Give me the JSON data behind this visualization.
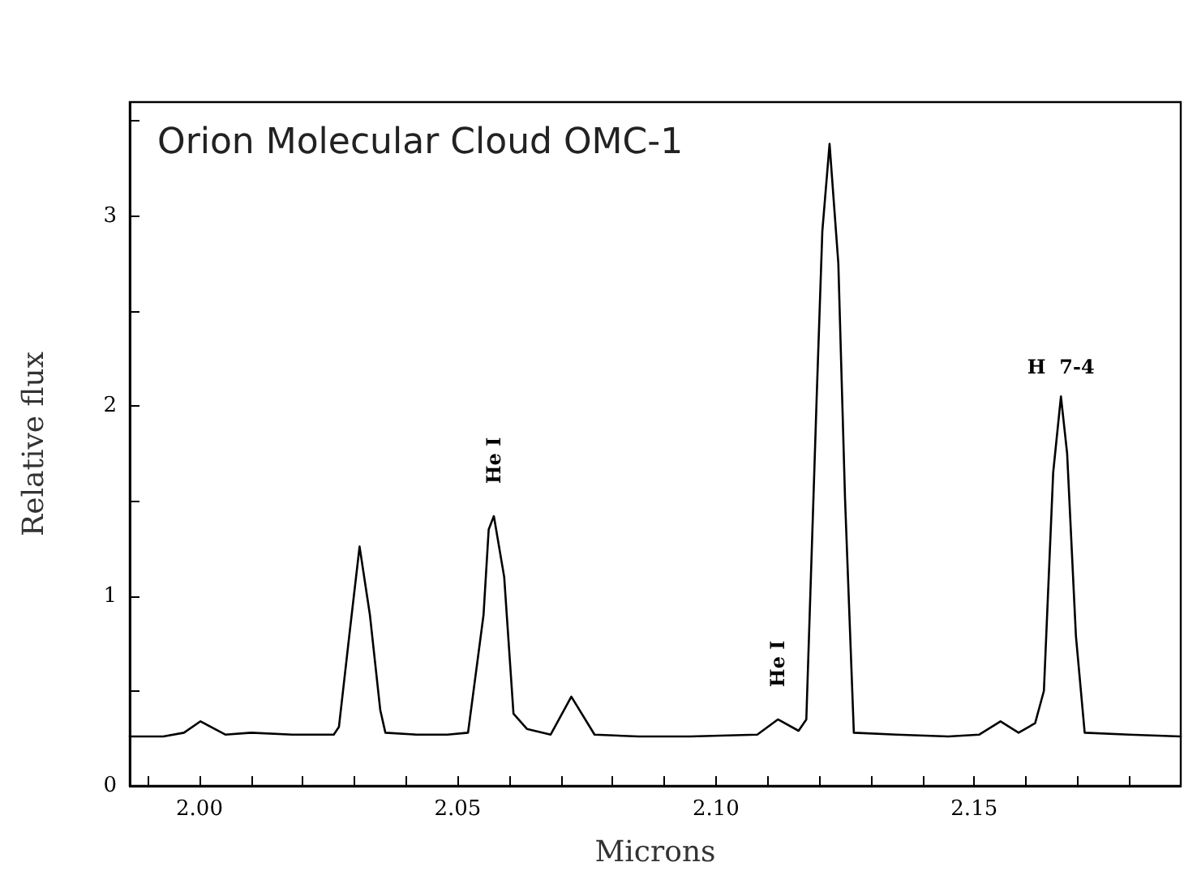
{
  "chart_data": {
    "type": "line",
    "title": "Orion Molecular Cloud OMC-1",
    "xlabel": "Microns",
    "ylabel": "Relative flux",
    "x": [
      1.9865,
      1.993,
      1.997,
      2.0002,
      2.005,
      2.01,
      2.018,
      2.026,
      2.027,
      2.029,
      2.031,
      2.033,
      2.035,
      2.036,
      2.042,
      2.048,
      2.052,
      2.055,
      2.056,
      2.057,
      2.059,
      2.0608,
      2.0634,
      2.068,
      2.072,
      2.0765,
      2.085,
      2.095,
      2.108,
      2.112,
      2.116,
      2.1175,
      2.1195,
      2.1206,
      2.122,
      2.1237,
      2.125,
      2.1267,
      2.135,
      2.145,
      2.151,
      2.1551,
      2.1586,
      2.1618,
      2.1635,
      2.1653,
      2.1668,
      2.168,
      2.1697,
      2.1714,
      2.18,
      2.19
    ],
    "series": [
      {
        "color": "#000000",
        "values": [
          0.26,
          0.26,
          0.28,
          0.34,
          0.27,
          0.28,
          0.27,
          0.27,
          0.31,
          0.79,
          1.26,
          0.9,
          0.4,
          0.28,
          0.27,
          0.27,
          0.28,
          0.9,
          1.35,
          1.42,
          1.1,
          0.38,
          0.3,
          0.27,
          0.47,
          0.27,
          0.26,
          0.26,
          0.27,
          0.35,
          0.29,
          0.35,
          2.04,
          2.92,
          3.38,
          2.75,
          1.51,
          0.28,
          0.27,
          0.26,
          0.27,
          0.34,
          0.28,
          0.33,
          0.5,
          1.65,
          2.05,
          1.75,
          0.79,
          0.28,
          0.27,
          0.26
        ]
      }
    ],
    "annotations": [
      {
        "text": "He I",
        "x": 2.057,
        "y": 1.42
      },
      {
        "text": "He I",
        "x": 2.112,
        "y": 0.35
      },
      {
        "text": "H  7-4",
        "x": 2.1668,
        "y": 2.05
      }
    ],
    "xlim": [
      1.9865,
      2.19
    ],
    "ylim": [
      0,
      3.6
    ],
    "xticks": [
      {
        "value": 1.99,
        "label": null
      },
      {
        "value": 2.0,
        "label": "2.00"
      },
      {
        "value": 2.01,
        "label": null
      },
      {
        "value": 2.02,
        "label": null
      },
      {
        "value": 2.03,
        "label": null
      },
      {
        "value": 2.04,
        "label": null
      },
      {
        "value": 2.05,
        "label": "2.05"
      },
      {
        "value": 2.06,
        "label": null
      },
      {
        "value": 2.07,
        "label": null
      },
      {
        "value": 2.08,
        "label": null
      },
      {
        "value": 2.09,
        "label": null
      },
      {
        "value": 2.1,
        "label": "2.10"
      },
      {
        "value": 2.11,
        "label": null
      },
      {
        "value": 2.12,
        "label": null
      },
      {
        "value": 2.13,
        "label": null
      },
      {
        "value": 2.14,
        "label": null
      },
      {
        "value": 2.15,
        "label": "2.15"
      },
      {
        "value": 2.16,
        "label": null
      },
      {
        "value": 2.17,
        "label": null
      },
      {
        "value": 2.18,
        "label": null
      }
    ],
    "yticks": [
      0,
      {
        "value": 0.5,
        "label": null
      },
      1,
      {
        "value": 1.5,
        "label": null
      },
      2,
      {
        "value": 2.5,
        "label": null
      },
      3,
      {
        "value": 3.5,
        "label": null
      }
    ],
    "grid": false,
    "marker": "none",
    "line_style": "solid"
  }
}
